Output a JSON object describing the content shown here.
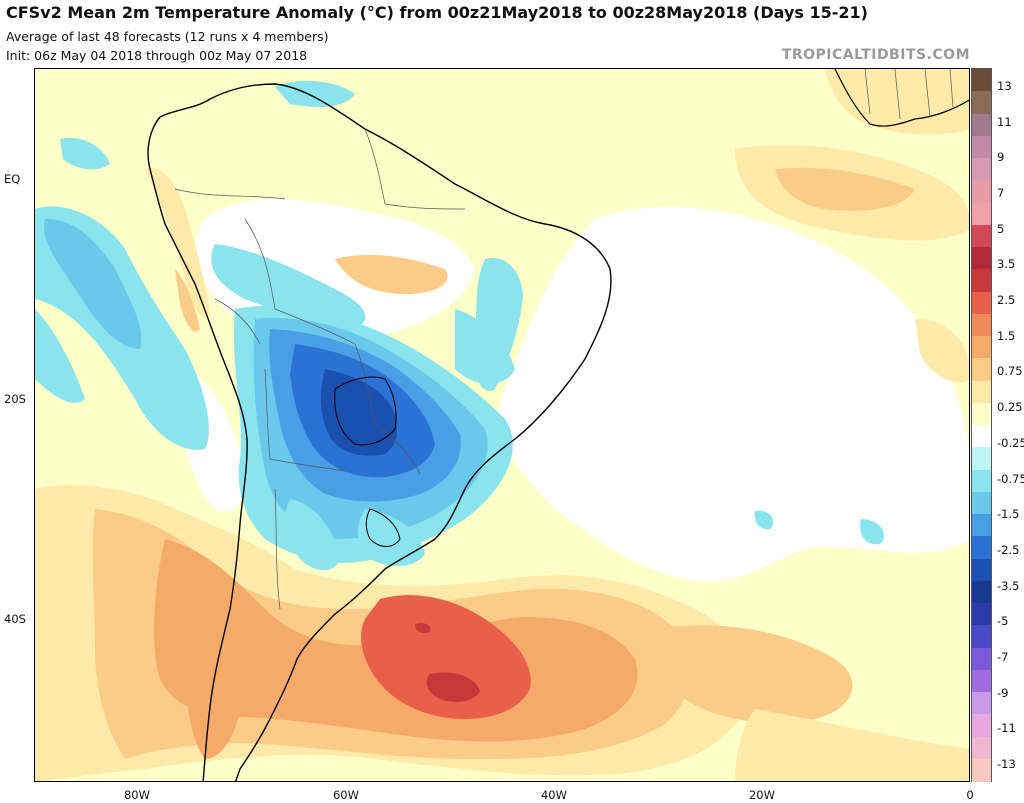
{
  "header": {
    "title": "CFSv2 Mean 2m Temperature Anomaly (°C) from 00z21May2018 to 00z28May2018 (Days 15-21)",
    "subtitle1": "Average of last 48 forecasts (12 runs x 4 members)",
    "subtitle2": "Init: 06z May 04 2018 through 00z May 07 2018",
    "credit": "TROPICALTIDBITS.COM"
  },
  "axes": {
    "lat_labels": [
      "EQ",
      "20S",
      "40S"
    ],
    "lon_labels": [
      "80W",
      "60W",
      "40W",
      "20W",
      "0"
    ]
  },
  "colorbar": {
    "labels": [
      "13",
      "11",
      "9",
      "7",
      "5",
      "3.5",
      "2.5",
      "1.5",
      "0.75",
      "0.25",
      "-0.25",
      "-0.75",
      "-1.5",
      "-2.5",
      "-3.5",
      "-5",
      "-7",
      "-9",
      "-11",
      "-13"
    ],
    "colors": [
      "#6b4a3a",
      "#8c6a5a",
      "#a07a8c",
      "#c28aa6",
      "#d69ab2",
      "#e89aa6",
      "#f0a0a8",
      "#d04a5a",
      "#b02a3a",
      "#c8383a",
      "#e8604a",
      "#f08a5a",
      "#f6aa6a",
      "#fbcc88",
      "#fdeaa8",
      "#fefec8",
      "#ffffff",
      "#bff5f5",
      "#8ae4ee",
      "#6ac8ec",
      "#4a9ee6",
      "#2a72d4",
      "#1a50b0",
      "#163a94",
      "#2a3aa6",
      "#4a4ac8",
      "#7a5ad8",
      "#a06ae0",
      "#c89ae8",
      "#e8a8e0",
      "#f0b8d0",
      "#f8c8c0"
    ],
    "level_colors": {
      "pos_13": "#6b4a3a",
      "pos_11": "#a07a8c",
      "pos_9": "#d69ab2",
      "pos_7": "#f0a0a8",
      "pos_5": "#b02a3a",
      "pos_3_5": "#c8383a",
      "pos_2_5": "#e8604a",
      "pos_1_5": "#f08a5a",
      "pos_0_75": "#fbcc88",
      "pos_0_25": "#fefec8",
      "zero": "#ffffff",
      "neg_0_25": "#bff5f5",
      "neg_0_75": "#8ae4ee",
      "neg_1_5": "#4a9ee6",
      "neg_2_5": "#2a72d4",
      "neg_3_5": "#163a94",
      "neg_5": "#2a3aa6",
      "neg_7": "#7a5ad8",
      "neg_9": "#c89ae8",
      "neg_11": "#e8a8e0",
      "neg_13": "#f8c8c0"
    }
  },
  "map": {
    "region": "South America and South Atlantic",
    "colors": {
      "warm_light": "#fefec8",
      "warm_pale": "#fdeaa8",
      "warm_mid": "#fbcc88",
      "warm_orange": "#f6aa6a",
      "warm_red": "#e8604a",
      "warm_deep": "#c8383a",
      "neutral": "#ffffff",
      "cool_light": "#bff5f5",
      "cool_cyan": "#8ae4ee",
      "cool_blue": "#6ac8ec",
      "cool_mid": "#4a9ee6",
      "cool_deep": "#2a72d4",
      "cool_darkest": "#1a50b0",
      "coast": "#000000",
      "border": "#555555"
    }
  }
}
